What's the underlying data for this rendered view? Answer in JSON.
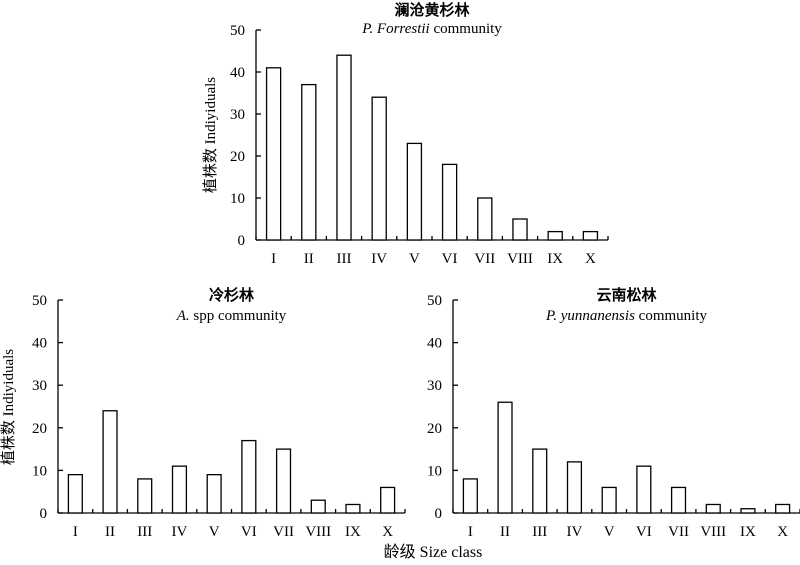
{
  "chart_data": [
    {
      "type": "bar",
      "title": "澜沧黄杉林",
      "subtitle_italic": "P. Forrestii",
      "subtitle_rest": " community",
      "ylabel": "植株数 Indiyiduals",
      "xlabel": "",
      "ylim": [
        0,
        50
      ],
      "yticks": [
        "0",
        "10",
        "20",
        "30",
        "40",
        "50"
      ],
      "categories": [
        "I",
        "II",
        "III",
        "IV",
        "V",
        "VI",
        "VII",
        "VIII",
        "IX",
        "X"
      ],
      "values": [
        41,
        37,
        44,
        34,
        23,
        18,
        10,
        5,
        2,
        2
      ]
    },
    {
      "type": "bar",
      "title": "冷杉林",
      "subtitle_italic": "A.",
      "subtitle_rest": " spp community",
      "ylabel": "植株数 Indiyiduals",
      "xlabel": "",
      "ylim": [
        0,
        50
      ],
      "yticks": [
        "0",
        "10",
        "20",
        "30",
        "40",
        "50"
      ],
      "categories": [
        "I",
        "II",
        "III",
        "IV",
        "V",
        "VI",
        "VII",
        "VIII",
        "IX",
        "X"
      ],
      "values": [
        9,
        24,
        8,
        11,
        9,
        17,
        15,
        3,
        2,
        6
      ]
    },
    {
      "type": "bar",
      "title": "云南松林",
      "subtitle_italic": "P. yunnanensis",
      "subtitle_rest": "  community",
      "ylabel": "",
      "xlabel": "",
      "ylim": [
        0,
        50
      ],
      "yticks": [
        "0",
        "10",
        "20",
        "30",
        "40",
        "50"
      ],
      "categories": [
        "I",
        "II",
        "III",
        "IV",
        "V",
        "VI",
        "VII",
        "VIII",
        "IX",
        "X"
      ],
      "values": [
        8,
        26,
        15,
        12,
        6,
        11,
        6,
        2,
        1,
        2
      ]
    }
  ],
  "figure": {
    "xlabel": "龄级 Size class"
  }
}
